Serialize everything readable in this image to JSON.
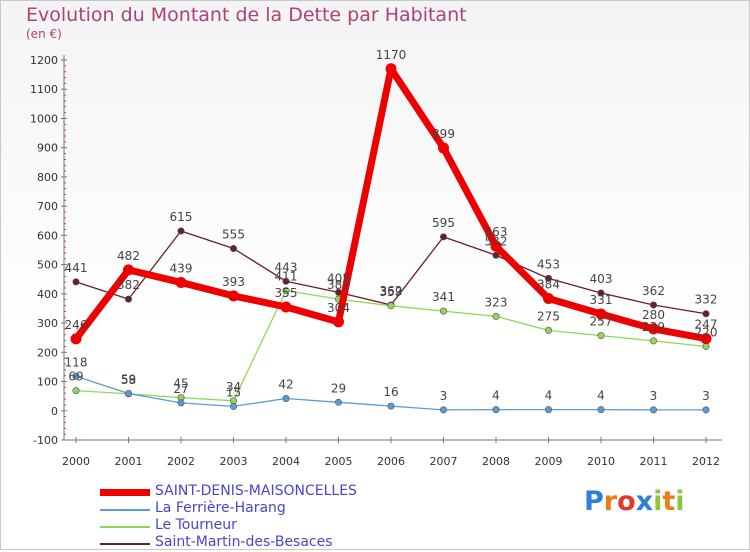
{
  "chart_data": {
    "type": "line",
    "title": "Evolution du Montant de la Dette par Habitant",
    "subtitle": "(en €)",
    "x": [
      "2000",
      "2001",
      "2002",
      "2003",
      "2004",
      "2005",
      "2006",
      "2007",
      "2008",
      "2009",
      "2010",
      "2011",
      "2012"
    ],
    "ylim": [
      -100,
      1200
    ],
    "yticks": [
      "-100",
      "0",
      "100",
      "200",
      "300",
      "400",
      "500",
      "600",
      "700",
      "800",
      "900",
      "1000",
      "1100",
      "1200"
    ],
    "grid": false,
    "legend_position": "bottom-left",
    "series": [
      {
        "name": "SAINT-DENIS-MAISONCELLES",
        "color": "#ee0000",
        "values": [
          246,
          482,
          439,
          393,
          355,
          304,
          1170,
          899,
          563,
          384,
          331,
          280,
          247
        ],
        "labels": [
          "246",
          "482",
          "439",
          "393",
          "355",
          "304",
          "1170",
          "899",
          "563",
          "384",
          "331",
          "280",
          "247"
        ]
      },
      {
        "name": "La Ferrière-Harang",
        "color": "#5b9bd5",
        "values": [
          118,
          59,
          27,
          15,
          42,
          29,
          16,
          3,
          4,
          4,
          4,
          3,
          3
        ],
        "labels": [
          "118",
          "59",
          "27",
          "15",
          "42",
          "29",
          "16",
          "3",
          "4",
          "4",
          "4",
          "3",
          "3"
        ]
      },
      {
        "name": "Le Tourneur",
        "color": "#8fd65a",
        "values": [
          69,
          58,
          45,
          34,
          411,
          382,
          359,
          341,
          323,
          275,
          257,
          239,
          220
        ],
        "labels": [
          "69",
          "58",
          "45",
          "34",
          "411",
          "382",
          "359",
          "341",
          "323",
          "275",
          "257",
          "239",
          "220"
        ]
      },
      {
        "name": "Saint-Martin-des-Besaces",
        "color": "#6b1e2a",
        "values": [
          441,
          382,
          615,
          555,
          443,
          405,
          362,
          595,
          532,
          453,
          403,
          362,
          332
        ],
        "labels": [
          "441",
          "382",
          "615",
          "555",
          "443",
          "405",
          "362",
          "595",
          "532",
          "453",
          "403",
          "362",
          "332"
        ]
      }
    ]
  },
  "branding": {
    "logo_letters": [
      "P",
      "r",
      "o",
      "x",
      "i",
      "t",
      "i"
    ],
    "logo_colors": [
      "#2f7fd8",
      "#f07a1a",
      "#e23a2a",
      "#2f7fd8",
      "#8cc63f",
      "#f07a1a",
      "#8cc63f"
    ]
  }
}
